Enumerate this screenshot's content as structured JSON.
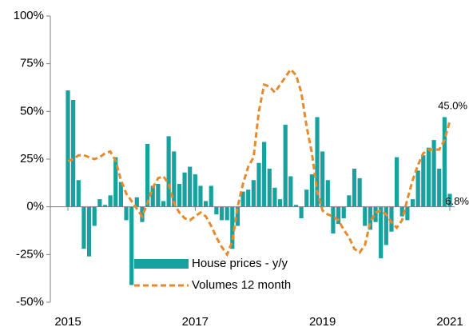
{
  "chart_data": {
    "type": "bar-line",
    "categories": [
      "2015",
      null,
      null,
      null,
      null,
      null,
      null,
      null,
      null,
      null,
      null,
      null,
      null,
      null,
      null,
      null,
      null,
      null,
      null,
      null,
      null,
      null,
      null,
      null,
      "2017",
      null,
      null,
      null,
      null,
      null,
      null,
      null,
      null,
      null,
      null,
      null,
      null,
      null,
      null,
      null,
      null,
      null,
      null,
      null,
      null,
      null,
      null,
      null,
      "2019",
      null,
      null,
      null,
      null,
      null,
      null,
      null,
      null,
      null,
      null,
      null,
      null,
      null,
      null,
      null,
      null,
      null,
      null,
      null,
      null,
      null,
      null,
      null,
      "2021"
    ],
    "series": [
      {
        "name": "House prices - y/y",
        "type": "bar",
        "color": "#17a2a0",
        "values": [
          61,
          56,
          14,
          -22,
          -26,
          -10,
          4,
          1,
          6,
          26,
          13,
          -7,
          -41,
          5,
          -8,
          33,
          11,
          12,
          3,
          37,
          29,
          12,
          18,
          21,
          17,
          11,
          3,
          11,
          -4,
          -7,
          -7,
          -22,
          -10,
          8,
          9,
          14,
          23,
          34,
          20,
          10,
          4,
          43,
          16,
          1,
          -6,
          9,
          17,
          47,
          29,
          14,
          -14,
          -9,
          -6,
          6,
          20,
          15,
          -10,
          -12,
          -8,
          -27,
          -20,
          -13,
          26,
          -5,
          -7,
          4,
          19,
          27,
          31,
          35,
          20,
          47,
          6.8
        ],
        "value_labels": [
          null,
          null,
          null,
          null,
          null,
          null,
          null,
          null,
          null,
          null,
          null,
          null,
          null,
          null,
          null,
          null,
          null,
          null,
          null,
          null,
          null,
          null,
          null,
          null,
          null,
          null,
          null,
          null,
          null,
          null,
          null,
          null,
          null,
          null,
          null,
          null,
          null,
          null,
          null,
          null,
          null,
          null,
          null,
          null,
          null,
          null,
          null,
          null,
          null,
          null,
          null,
          null,
          null,
          null,
          null,
          null,
          null,
          null,
          null,
          null,
          null,
          null,
          null,
          null,
          null,
          null,
          null,
          null,
          null,
          null,
          null,
          null,
          "6.8%"
        ]
      },
      {
        "name": "Volumes 12 month",
        "type": "line",
        "color": "#e8892b",
        "values": [
          24,
          25,
          27,
          27,
          26,
          25,
          26,
          28,
          29,
          24,
          14,
          7,
          3,
          -1,
          -5,
          2,
          10,
          15,
          16,
          12,
          2,
          -3,
          -6,
          -7,
          -5,
          -3,
          -5,
          -10,
          -16,
          -21,
          -25,
          -18,
          0,
          12,
          21,
          26,
          50,
          64,
          63,
          60,
          64,
          68,
          72,
          69,
          60,
          42,
          28,
          8,
          -2,
          -4,
          -5,
          -7,
          -12,
          -16,
          -22,
          -24,
          -20,
          -8,
          -3,
          -2,
          -4,
          -8,
          -11,
          -7,
          4,
          14,
          22,
          28,
          30,
          30,
          30,
          35,
          45
        ],
        "value_labels": [
          null,
          null,
          null,
          null,
          null,
          null,
          null,
          null,
          null,
          null,
          null,
          null,
          null,
          null,
          null,
          null,
          null,
          null,
          null,
          null,
          null,
          null,
          null,
          null,
          null,
          null,
          null,
          null,
          null,
          null,
          null,
          null,
          null,
          null,
          null,
          null,
          null,
          null,
          null,
          null,
          null,
          null,
          null,
          null,
          null,
          null,
          null,
          null,
          null,
          null,
          null,
          null,
          null,
          null,
          null,
          null,
          null,
          null,
          null,
          null,
          null,
          null,
          null,
          null,
          null,
          null,
          null,
          null,
          null,
          null,
          null,
          null,
          "45.0%"
        ]
      }
    ],
    "ylim": [
      -50,
      100
    ],
    "yticks": [
      {
        "value": -50,
        "label": "-50%"
      },
      {
        "value": -25,
        "label": "-25%"
      },
      {
        "value": 0,
        "label": "0%"
      },
      {
        "value": 25,
        "label": "25%"
      },
      {
        "value": 50,
        "label": "50%"
      },
      {
        "value": 75,
        "label": "75%"
      },
      {
        "value": 100,
        "label": "100%"
      }
    ],
    "grid": false,
    "legend": "lower left"
  }
}
